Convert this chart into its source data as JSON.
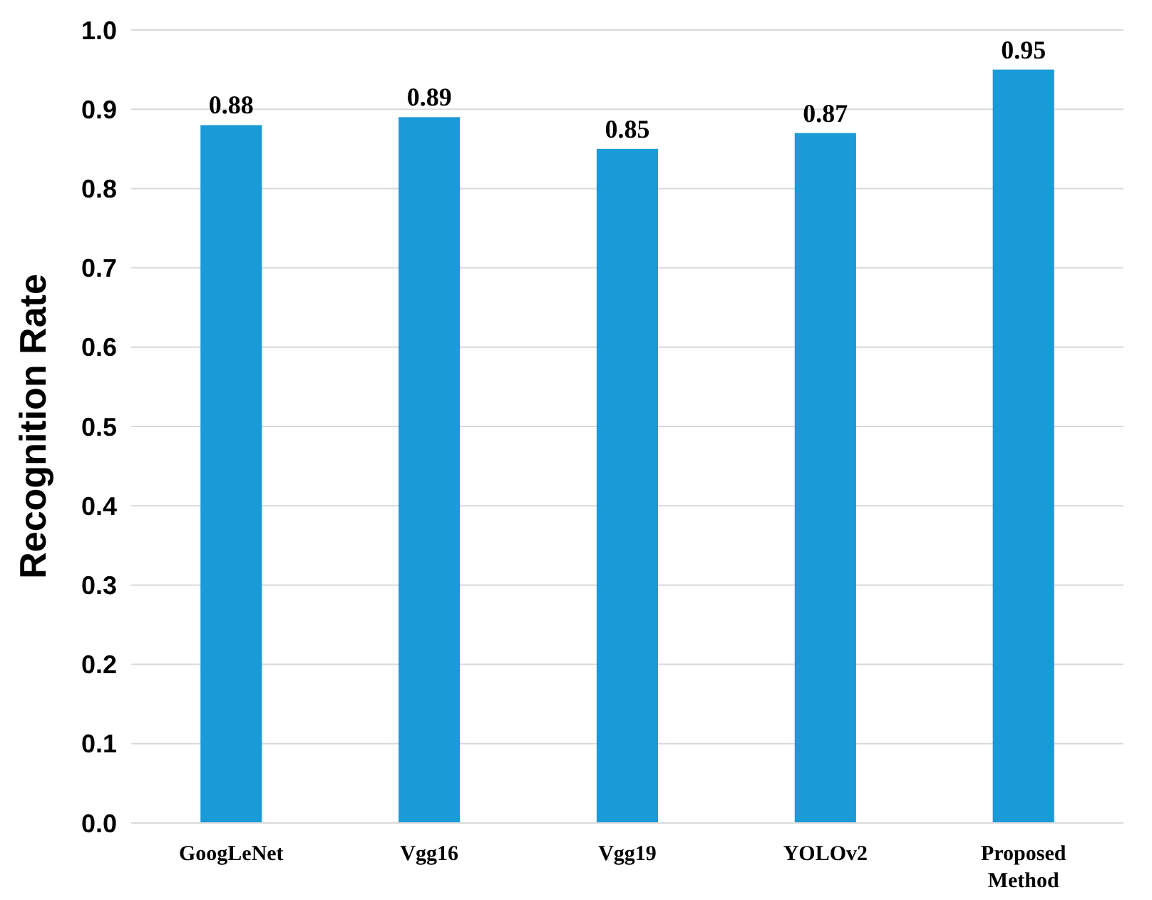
{
  "chart_data": {
    "type": "bar",
    "ylabel": "Recognition Rate",
    "categories": [
      "GoogLeNet",
      "Vgg16",
      "Vgg19",
      "YOLOv2",
      "Proposed Method"
    ],
    "values": [
      0.88,
      0.89,
      0.85,
      0.87,
      0.95
    ],
    "color": "#1a9ad6",
    "ylim": [
      0,
      1
    ],
    "yticks": [
      {
        "value": 0,
        "label": "0.0"
      },
      0.1,
      0.2,
      0.3,
      0.4,
      0.5,
      0.6,
      0.7,
      0.8,
      0.9,
      {
        "value": 1,
        "label": "1.0"
      }
    ],
    "grid": "y",
    "data_labels": true
  }
}
